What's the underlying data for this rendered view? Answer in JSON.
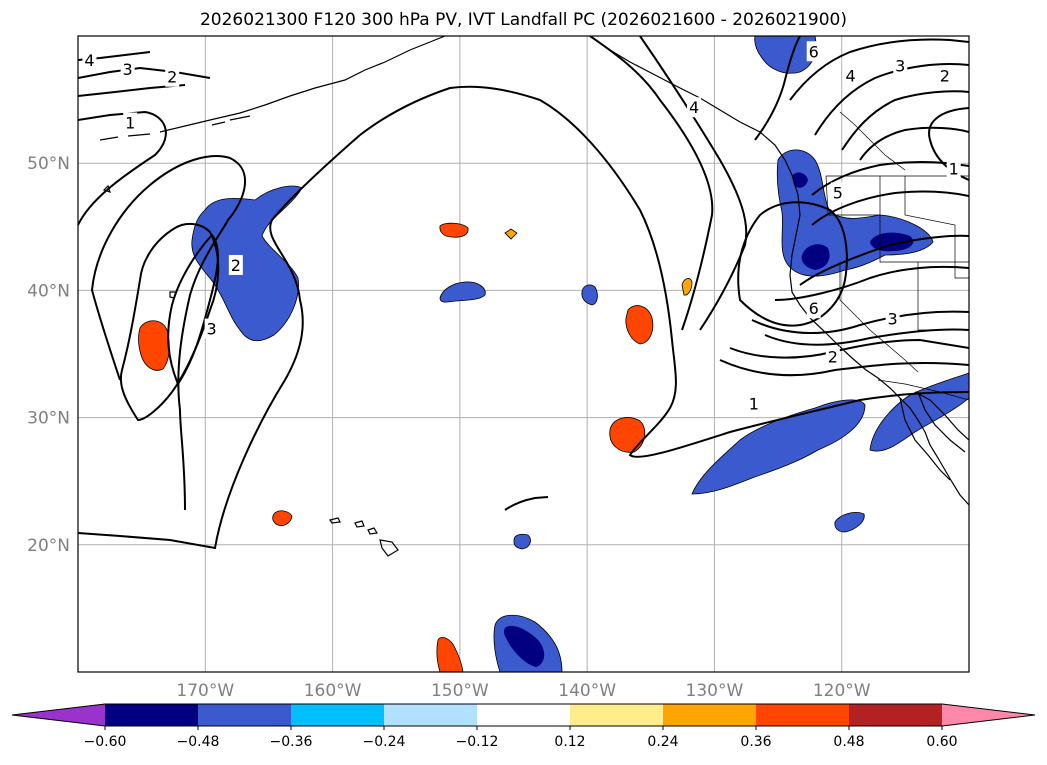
{
  "title": "2026021300 F120 300 hPa PV, IVT Landfall PC (2026021600 - 2026021900)",
  "map": {
    "lon_range": [
      -180,
      -110
    ],
    "lat_range": [
      10,
      60
    ],
    "lon_ticks": [
      {
        "v": -170,
        "label": "170°W"
      },
      {
        "v": -160,
        "label": "160°W"
      },
      {
        "v": -150,
        "label": "150°W"
      },
      {
        "v": -140,
        "label": "140°W"
      },
      {
        "v": -130,
        "label": "130°W"
      },
      {
        "v": -120,
        "label": "120°W"
      }
    ],
    "lat_ticks": [
      {
        "v": 50,
        "label": "50°N"
      },
      {
        "v": 40,
        "label": "40°N"
      },
      {
        "v": 30,
        "label": "30°N"
      },
      {
        "v": 20,
        "label": "20°N"
      }
    ],
    "grid": true,
    "tick_color": "#808080"
  },
  "colorbar": {
    "position": "bottom",
    "extend": "both",
    "colors": [
      "#9933cc",
      "#000080",
      "#3a5acd",
      "#00bfff",
      "#b0e2ff",
      "#ffffff",
      "#ffec8b",
      "#ffa500",
      "#ff4500",
      "#b22222",
      "#ff88aa"
    ],
    "ticks": [
      "−0.60",
      "−0.48",
      "−0.36",
      "−0.24",
      "−0.12",
      "0.12",
      "0.24",
      "0.36",
      "0.48",
      "0.60"
    ]
  },
  "contour_labels": [
    {
      "text": "4",
      "lon": -179.1,
      "lat": 58.1
    },
    {
      "text": "3",
      "lon": -176.1,
      "lat": 57.4
    },
    {
      "text": "2",
      "lon": -172.6,
      "lat": 56.8
    },
    {
      "text": "1",
      "lon": -175.9,
      "lat": 53.2
    },
    {
      "text": "2",
      "lon": -167.6,
      "lat": 42.0
    },
    {
      "text": "3",
      "lon": -169.5,
      "lat": 37.0
    },
    {
      "text": "6",
      "lon": -122.2,
      "lat": 58.8
    },
    {
      "text": "4",
      "lon": -119.3,
      "lat": 56.9
    },
    {
      "text": "3",
      "lon": -115.4,
      "lat": 57.7
    },
    {
      "text": "2",
      "lon": -111.9,
      "lat": 56.9
    },
    {
      "text": "1",
      "lon": -111.2,
      "lat": 49.6
    },
    {
      "text": "4",
      "lon": -131.6,
      "lat": 54.4
    },
    {
      "text": "5",
      "lon": -120.3,
      "lat": 47.7
    },
    {
      "text": "6",
      "lon": -122.2,
      "lat": 38.6
    },
    {
      "text": "3",
      "lon": -116.0,
      "lat": 37.8
    },
    {
      "text": "2",
      "lon": -120.7,
      "lat": 34.8
    },
    {
      "text": "1",
      "lon": -126.9,
      "lat": 31.1
    }
  ]
}
